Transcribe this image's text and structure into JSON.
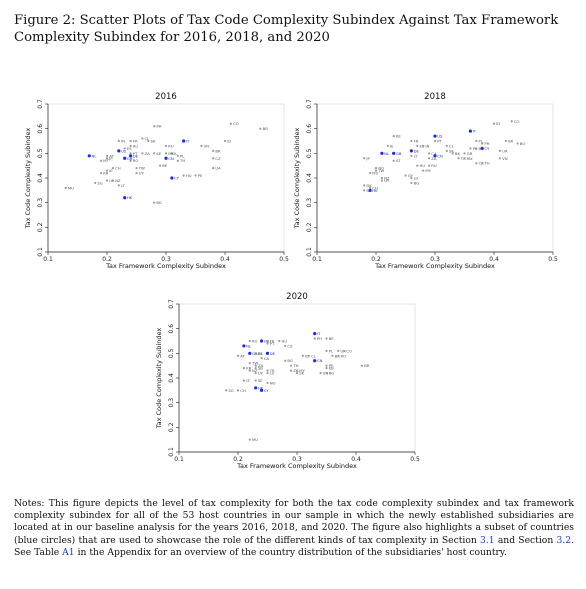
{
  "figure": {
    "title": "Figure 2: Scatter Plots of Tax Code Complexity Subindex Against Tax Framework Complexity Subindex for 2016, 2018, and 2020"
  },
  "notes": {
    "part1": "Notes: This figure depicts the level of tax complexity for both the tax code complexity subindex and tax framework complexity subindex for all of the 53 host countries in our sample in which the newly established subsidiaries are located at in our baseline analysis for the years 2016, 2018, and 2020. The figure also highlights a subset of countries (blue circles) that are used to showcase the role of the different kinds of tax complexity in Section ",
    "ref1": "3.1",
    "part2": " and Section ",
    "ref2": "3.2",
    "part3": ". See Table ",
    "ref3": "A1",
    "part4": " in the Appendix for an overview of the country distribution of the subsidiaries' host country."
  },
  "colors": {
    "highlight": "#1f2bd6",
    "other": "#9a9a9a",
    "axis": "#222222"
  },
  "chart_data": [
    {
      "type": "scatter",
      "title": "2016",
      "xlabel": "Tax Framework Complexity Subindex",
      "ylabel": "Tax Code Complexity Subindex",
      "xlim": [
        0.1,
        0.5
      ],
      "ylim": [
        0.1,
        0.7
      ],
      "xticks": [
        "0.1",
        "0.2",
        "0.3",
        "0.4",
        "0.5"
      ],
      "yticks": [
        "0.1",
        "0.2",
        "0.3",
        "0.4",
        "0.5",
        "0.6",
        "0.7"
      ],
      "grid": false,
      "points": [
        {
          "label": "NL",
          "x": 0.17,
          "y": 0.49,
          "highlight": true
        },
        {
          "label": "US",
          "x": 0.22,
          "y": 0.51,
          "highlight": true
        },
        {
          "label": "AT",
          "x": 0.2,
          "y": 0.49,
          "highlight": false
        },
        {
          "label": "JP",
          "x": 0.2,
          "y": 0.48,
          "highlight": false
        },
        {
          "label": "MT",
          "x": 0.19,
          "y": 0.47,
          "highlight": false
        },
        {
          "label": "CH",
          "x": 0.21,
          "y": 0.44,
          "highlight": false
        },
        {
          "label": "KR",
          "x": 0.19,
          "y": 0.42,
          "highlight": false
        },
        {
          "label": "IE",
          "x": 0.2,
          "y": 0.43,
          "highlight": false
        },
        {
          "label": "LU",
          "x": 0.2,
          "y": 0.39,
          "highlight": false
        },
        {
          "label": "NZ",
          "x": 0.21,
          "y": 0.39,
          "highlight": false
        },
        {
          "label": "SG",
          "x": 0.18,
          "y": 0.38,
          "highlight": false
        },
        {
          "label": "MU",
          "x": 0.13,
          "y": 0.36,
          "highlight": false
        },
        {
          "label": "LT",
          "x": 0.22,
          "y": 0.37,
          "highlight": false
        },
        {
          "label": "HK",
          "x": 0.23,
          "y": 0.32,
          "highlight": true
        },
        {
          "label": "BG",
          "x": 0.28,
          "y": 0.3,
          "highlight": false
        },
        {
          "label": "DE",
          "x": 0.24,
          "y": 0.49,
          "highlight": true
        },
        {
          "label": "GB",
          "x": 0.23,
          "y": 0.48,
          "highlight": true
        },
        {
          "label": "FR",
          "x": 0.24,
          "y": 0.55,
          "highlight": false
        },
        {
          "label": "IN",
          "x": 0.22,
          "y": 0.55,
          "highlight": false
        },
        {
          "label": "AU",
          "x": 0.24,
          "y": 0.53,
          "highlight": false
        },
        {
          "label": "ES",
          "x": 0.23,
          "y": 0.52,
          "highlight": false
        },
        {
          "label": "PT",
          "x": 0.24,
          "y": 0.5,
          "highlight": false
        },
        {
          "label": "RO",
          "x": 0.24,
          "y": 0.47,
          "highlight": false
        },
        {
          "label": "TW",
          "x": 0.25,
          "y": 0.44,
          "highlight": false
        },
        {
          "label": "UY",
          "x": 0.25,
          "y": 0.42,
          "highlight": false
        },
        {
          "label": "ZA",
          "x": 0.26,
          "y": 0.5,
          "highlight": false
        },
        {
          "label": "SK",
          "x": 0.27,
          "y": 0.55,
          "highlight": false
        },
        {
          "label": "CL",
          "x": 0.26,
          "y": 0.56,
          "highlight": false
        },
        {
          "label": "PH",
          "x": 0.28,
          "y": 0.61,
          "highlight": false
        },
        {
          "label": "KE",
          "x": 0.28,
          "y": 0.5,
          "highlight": false
        },
        {
          "label": "RU",
          "x": 0.3,
          "y": 0.53,
          "highlight": false
        },
        {
          "label": "IL",
          "x": 0.31,
          "y": 0.5,
          "highlight": false
        },
        {
          "label": "MX",
          "x": 0.3,
          "y": 0.5,
          "highlight": false
        },
        {
          "label": "CN",
          "x": 0.3,
          "y": 0.48,
          "highlight": true
        },
        {
          "label": "TH",
          "x": 0.32,
          "y": 0.47,
          "highlight": false
        },
        {
          "label": "BE",
          "x": 0.29,
          "y": 0.45,
          "highlight": false
        },
        {
          "label": "IT",
          "x": 0.33,
          "y": 0.55,
          "highlight": true
        },
        {
          "label": "PL",
          "x": 0.32,
          "y": 0.49,
          "highlight": false
        },
        {
          "label": "HU",
          "x": 0.33,
          "y": 0.41,
          "highlight": false
        },
        {
          "label": "PE",
          "x": 0.35,
          "y": 0.41,
          "highlight": false
        },
        {
          "label": "CY",
          "x": 0.31,
          "y": 0.4,
          "highlight": true
        },
        {
          "label": "VN",
          "x": 0.36,
          "y": 0.53,
          "highlight": false
        },
        {
          "label": "BR",
          "x": 0.38,
          "y": 0.51,
          "highlight": false
        },
        {
          "label": "CZ",
          "x": 0.38,
          "y": 0.48,
          "highlight": false
        },
        {
          "label": "UA",
          "x": 0.38,
          "y": 0.44,
          "highlight": false
        },
        {
          "label": "ID",
          "x": 0.4,
          "y": 0.55,
          "highlight": false
        },
        {
          "label": "CO",
          "x": 0.41,
          "y": 0.62,
          "highlight": false
        },
        {
          "label": "BR",
          "x": 0.46,
          "y": 0.6,
          "highlight": false
        }
      ]
    },
    {
      "type": "scatter",
      "title": "2018",
      "xlabel": "Tax Framework Complexity Subindex",
      "ylabel": "Tax Code Complexity Subindex",
      "xlim": [
        0.1,
        0.5
      ],
      "ylim": [
        0.1,
        0.7
      ],
      "xticks": [
        "0.1",
        "0.2",
        "0.3",
        "0.4",
        "0.5"
      ],
      "yticks": [
        "0.1",
        "0.2",
        "0.3",
        "0.4",
        "0.5",
        "0.6",
        "0.7"
      ],
      "grid": false,
      "points": [
        {
          "label": "KE",
          "x": 0.23,
          "y": 0.57,
          "highlight": false
        },
        {
          "label": "FR",
          "x": 0.26,
          "y": 0.55,
          "highlight": false
        },
        {
          "label": "US",
          "x": 0.3,
          "y": 0.57,
          "highlight": true
        },
        {
          "label": "NL",
          "x": 0.21,
          "y": 0.5,
          "highlight": true
        },
        {
          "label": "GB",
          "x": 0.23,
          "y": 0.5,
          "highlight": true
        },
        {
          "label": "DE",
          "x": 0.26,
          "y": 0.51,
          "highlight": true
        },
        {
          "label": "CN",
          "x": 0.3,
          "y": 0.49,
          "highlight": true
        },
        {
          "label": "IT",
          "x": 0.36,
          "y": 0.59,
          "highlight": true
        },
        {
          "label": "CY",
          "x": 0.38,
          "y": 0.52,
          "highlight": true
        },
        {
          "label": "HK",
          "x": 0.19,
          "y": 0.35,
          "highlight": true
        },
        {
          "label": "IE",
          "x": 0.22,
          "y": 0.53,
          "highlight": false
        },
        {
          "label": "JP",
          "x": 0.18,
          "y": 0.48,
          "highlight": false
        },
        {
          "label": "AT",
          "x": 0.23,
          "y": 0.47,
          "highlight": false
        },
        {
          "label": "ES",
          "x": 0.27,
          "y": 0.53,
          "highlight": false
        },
        {
          "label": "IN",
          "x": 0.28,
          "y": 0.53,
          "highlight": false
        },
        {
          "label": "CL",
          "x": 0.32,
          "y": 0.53,
          "highlight": false
        },
        {
          "label": "PT",
          "x": 0.3,
          "y": 0.55,
          "highlight": false
        },
        {
          "label": "LT",
          "x": 0.26,
          "y": 0.49,
          "highlight": false
        },
        {
          "label": "CA",
          "x": 0.29,
          "y": 0.5,
          "highlight": false
        },
        {
          "label": "SK",
          "x": 0.32,
          "y": 0.51,
          "highlight": false
        },
        {
          "label": "ZA",
          "x": 0.29,
          "y": 0.48,
          "highlight": false
        },
        {
          "label": "HU",
          "x": 0.27,
          "y": 0.45,
          "highlight": false
        },
        {
          "label": "RU",
          "x": 0.29,
          "y": 0.45,
          "highlight": false
        },
        {
          "label": "MY",
          "x": 0.28,
          "y": 0.43,
          "highlight": false
        },
        {
          "label": "GY",
          "x": 0.25,
          "y": 0.41,
          "highlight": false
        },
        {
          "label": "LU",
          "x": 0.26,
          "y": 0.4,
          "highlight": false
        },
        {
          "label": "BG",
          "x": 0.26,
          "y": 0.38,
          "highlight": false
        },
        {
          "label": "NO",
          "x": 0.2,
          "y": 0.44,
          "highlight": false
        },
        {
          "label": "TW",
          "x": 0.2,
          "y": 0.43,
          "highlight": false
        },
        {
          "label": "MU",
          "x": 0.19,
          "y": 0.42,
          "highlight": false
        },
        {
          "label": "NZ",
          "x": 0.21,
          "y": 0.4,
          "highlight": false
        },
        {
          "label": "UY",
          "x": 0.21,
          "y": 0.39,
          "highlight": false
        },
        {
          "label": "DK",
          "x": 0.18,
          "y": 0.37,
          "highlight": false
        },
        {
          "label": "CH",
          "x": 0.19,
          "y": 0.36,
          "highlight": false
        },
        {
          "label": "SG",
          "x": 0.18,
          "y": 0.35,
          "highlight": false
        },
        {
          "label": "PE",
          "x": 0.36,
          "y": 0.52,
          "highlight": false
        },
        {
          "label": "BE",
          "x": 0.37,
          "y": 0.52,
          "highlight": false
        },
        {
          "label": "BK",
          "x": 0.33,
          "y": 0.5,
          "highlight": false
        },
        {
          "label": "GR",
          "x": 0.35,
          "y": 0.5,
          "highlight": false
        },
        {
          "label": "TR",
          "x": 0.34,
          "y": 0.48,
          "highlight": false
        },
        {
          "label": "MX",
          "x": 0.35,
          "y": 0.48,
          "highlight": false
        },
        {
          "label": "CZ",
          "x": 0.37,
          "y": 0.46,
          "highlight": false
        },
        {
          "label": "TH",
          "x": 0.38,
          "y": 0.46,
          "highlight": false
        },
        {
          "label": "PL",
          "x": 0.37,
          "y": 0.55,
          "highlight": false
        },
        {
          "label": "PH",
          "x": 0.38,
          "y": 0.54,
          "highlight": false
        },
        {
          "label": "UA",
          "x": 0.41,
          "y": 0.51,
          "highlight": false
        },
        {
          "label": "VN",
          "x": 0.41,
          "y": 0.48,
          "highlight": false
        },
        {
          "label": "ID",
          "x": 0.4,
          "y": 0.62,
          "highlight": false
        },
        {
          "label": "CO",
          "x": 0.43,
          "y": 0.63,
          "highlight": false
        },
        {
          "label": "BR",
          "x": 0.42,
          "y": 0.55,
          "highlight": false
        },
        {
          "label": "BO",
          "x": 0.44,
          "y": 0.54,
          "highlight": false
        }
      ]
    },
    {
      "type": "scatter",
      "title": "2020",
      "xlabel": "Tax Framework Complexity Subindex",
      "ylabel": "Tax Code Complexity Subindex",
      "xlim": [
        0.1,
        0.5
      ],
      "ylim": [
        0.1,
        0.7
      ],
      "xticks": [
        "0.1",
        "0.2",
        "0.3",
        "0.4",
        "0.5"
      ],
      "yticks": [
        "0.1",
        "0.2",
        "0.3",
        "0.4",
        "0.5",
        "0.6",
        "0.7"
      ],
      "grid": false,
      "points": [
        {
          "label": "US",
          "x": 0.24,
          "y": 0.55,
          "highlight": true
        },
        {
          "label": "NL",
          "x": 0.21,
          "y": 0.53,
          "highlight": true
        },
        {
          "label": "GB",
          "x": 0.22,
          "y": 0.5,
          "highlight": true
        },
        {
          "label": "DE",
          "x": 0.25,
          "y": 0.5,
          "highlight": true
        },
        {
          "label": "CN",
          "x": 0.33,
          "y": 0.47,
          "highlight": true
        },
        {
          "label": "IT",
          "x": 0.33,
          "y": 0.58,
          "highlight": true
        },
        {
          "label": "CY",
          "x": 0.24,
          "y": 0.35,
          "highlight": true
        },
        {
          "label": "HK",
          "x": 0.23,
          "y": 0.36,
          "highlight": true
        },
        {
          "label": "FR",
          "x": 0.25,
          "y": 0.55,
          "highlight": false
        },
        {
          "label": "PT",
          "x": 0.25,
          "y": 0.54,
          "highlight": false
        },
        {
          "label": "RU",
          "x": 0.22,
          "y": 0.55,
          "highlight": false
        },
        {
          "label": "HU",
          "x": 0.27,
          "y": 0.55,
          "highlight": false
        },
        {
          "label": "CZ",
          "x": 0.28,
          "y": 0.53,
          "highlight": false
        },
        {
          "label": "BE",
          "x": 0.35,
          "y": 0.56,
          "highlight": false
        },
        {
          "label": "PH",
          "x": 0.33,
          "y": 0.56,
          "highlight": false
        },
        {
          "label": "AT",
          "x": 0.2,
          "y": 0.49,
          "highlight": false
        },
        {
          "label": "ES",
          "x": 0.23,
          "y": 0.5,
          "highlight": false
        },
        {
          "label": "IN",
          "x": 0.23,
          "y": 0.5,
          "highlight": false
        },
        {
          "label": "CA",
          "x": 0.24,
          "y": 0.48,
          "highlight": false
        },
        {
          "label": "TW",
          "x": 0.22,
          "y": 0.46,
          "highlight": false
        },
        {
          "label": "ZA",
          "x": 0.23,
          "y": 0.45,
          "highlight": false
        },
        {
          "label": "SB",
          "x": 0.23,
          "y": 0.44,
          "highlight": false
        },
        {
          "label": "KR",
          "x": 0.21,
          "y": 0.44,
          "highlight": false
        },
        {
          "label": "NZ",
          "x": 0.22,
          "y": 0.43,
          "highlight": false
        },
        {
          "label": "UY",
          "x": 0.23,
          "y": 0.42,
          "highlight": false
        },
        {
          "label": "TR",
          "x": 0.25,
          "y": 0.43,
          "highlight": false
        },
        {
          "label": "LU",
          "x": 0.25,
          "y": 0.42,
          "highlight": false
        },
        {
          "label": "SE",
          "x": 0.23,
          "y": 0.39,
          "highlight": false
        },
        {
          "label": "NO",
          "x": 0.25,
          "y": 0.38,
          "highlight": false
        },
        {
          "label": "LT",
          "x": 0.21,
          "y": 0.39,
          "highlight": false
        },
        {
          "label": "SG",
          "x": 0.18,
          "y": 0.35,
          "highlight": false
        },
        {
          "label": "CH",
          "x": 0.2,
          "y": 0.35,
          "highlight": false
        },
        {
          "label": "MU",
          "x": 0.22,
          "y": 0.15,
          "highlight": false
        },
        {
          "label": "BG",
          "x": 0.28,
          "y": 0.47,
          "highlight": false
        },
        {
          "label": "TH",
          "x": 0.29,
          "y": 0.45,
          "highlight": false
        },
        {
          "label": "ID",
          "x": 0.31,
          "y": 0.49,
          "highlight": false
        },
        {
          "label": "CL",
          "x": 0.32,
          "y": 0.49,
          "highlight": false
        },
        {
          "label": "ZA",
          "x": 0.29,
          "y": 0.43,
          "highlight": false
        },
        {
          "label": "MY",
          "x": 0.3,
          "y": 0.43,
          "highlight": false
        },
        {
          "label": "SK",
          "x": 0.3,
          "y": 0.42,
          "highlight": false
        },
        {
          "label": "PL",
          "x": 0.35,
          "y": 0.51,
          "highlight": false
        },
        {
          "label": "UA",
          "x": 0.37,
          "y": 0.51,
          "highlight": false
        },
        {
          "label": "CO",
          "x": 0.38,
          "y": 0.51,
          "highlight": false
        },
        {
          "label": "BR",
          "x": 0.36,
          "y": 0.49,
          "highlight": false
        },
        {
          "label": "RO",
          "x": 0.37,
          "y": 0.49,
          "highlight": false
        },
        {
          "label": "PE",
          "x": 0.35,
          "y": 0.45,
          "highlight": false
        },
        {
          "label": "KB",
          "x": 0.35,
          "y": 0.44,
          "highlight": false
        },
        {
          "label": "VN",
          "x": 0.34,
          "y": 0.42,
          "highlight": false
        },
        {
          "label": "BG",
          "x": 0.35,
          "y": 0.42,
          "highlight": false
        },
        {
          "label": "BR",
          "x": 0.41,
          "y": 0.45,
          "highlight": false
        }
      ]
    }
  ]
}
